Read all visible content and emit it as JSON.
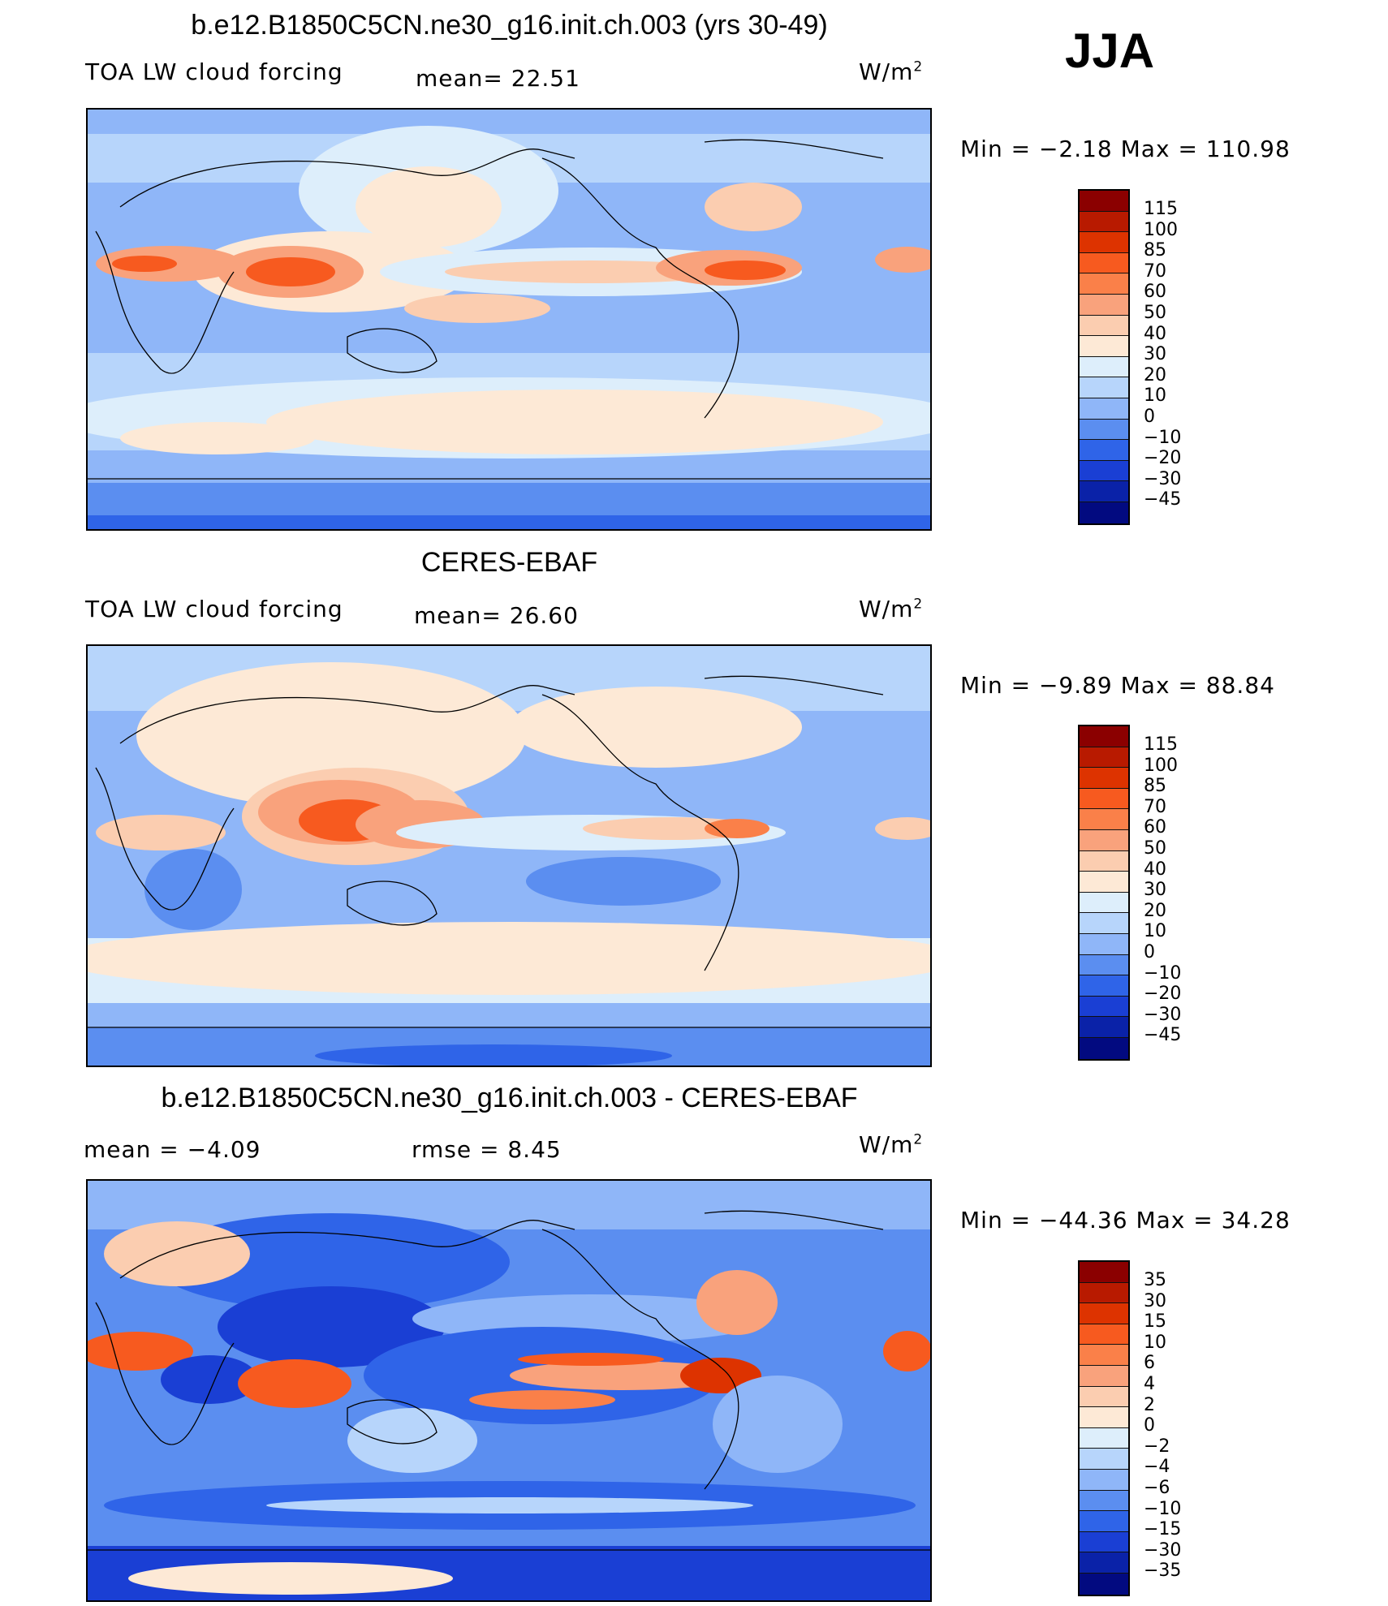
{
  "season": "JJA",
  "unit_label": "W/m",
  "unit_exp": "2",
  "panels": [
    {
      "title": "b.e12.B1850C5CN.ne30_g16.init.ch.003 (yrs 30-49)",
      "left_label": "TOA LW cloud forcing",
      "stat1": "mean=   22.51",
      "stat2": "",
      "minmax": "Min =   −2.18  Max  =  110.98",
      "colorbar_labels": [
        "115",
        "100",
        "85",
        "70",
        "60",
        "50",
        "40",
        "30",
        "20",
        "10",
        "0",
        "−10",
        "−20",
        "−30",
        "−45"
      ]
    },
    {
      "title": "CERES-EBAF",
      "left_label": "TOA LW cloud forcing",
      "stat1": "mean=   26.60",
      "stat2": "",
      "minmax": "Min =   −9.89  Max  =   88.84",
      "colorbar_labels": [
        "115",
        "100",
        "85",
        "70",
        "60",
        "50",
        "40",
        "30",
        "20",
        "10",
        "0",
        "−10",
        "−20",
        "−30",
        "−45"
      ]
    },
    {
      "title": "b.e12.B1850C5CN.ne30_g16.init.ch.003 - CERES-EBAF",
      "left_label": "mean  =    −4.09",
      "stat1": "rmse  =     8.45",
      "stat2": "",
      "minmax": "Min  = −44.36  Max  =   34.28",
      "colorbar_labels": [
        "35",
        "30",
        "15",
        "10",
        "6",
        "4",
        "2",
        "0",
        "−2",
        "−4",
        "−6",
        "−10",
        "−15",
        "−30",
        "−35"
      ]
    }
  ],
  "colorbar_colors": [
    "#8b0000",
    "#b81a00",
    "#dd3300",
    "#f75a1f",
    "#fa8049",
    "#f9a27c",
    "#fbcdb0",
    "#fde9d6",
    "#ddeefb",
    "#b7d5fb",
    "#8fb6f8",
    "#5b8ef0",
    "#2f64e8",
    "#1a3fd4",
    "#0a22a8",
    "#020a80"
  ]
}
